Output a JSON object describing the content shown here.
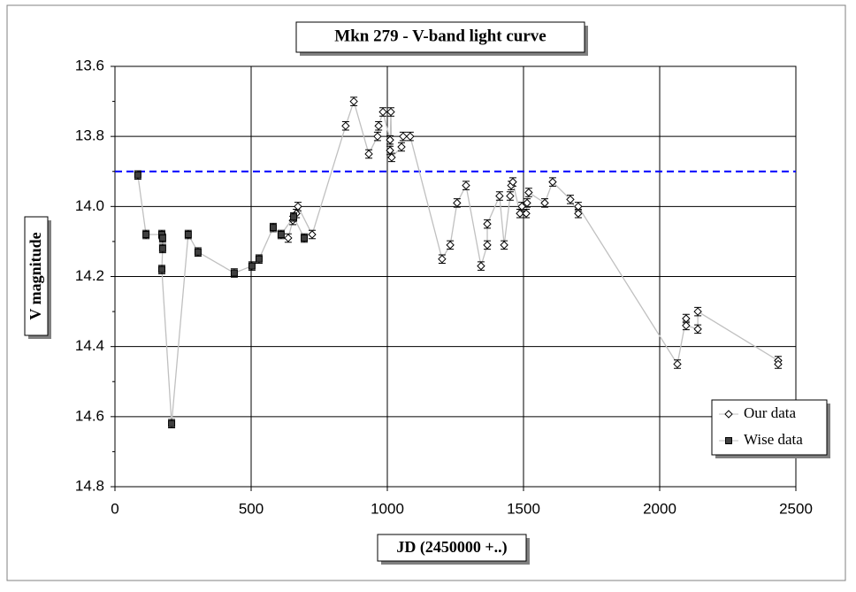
{
  "chart_data": {
    "type": "scatter",
    "title": "Mkn 279 - V-band light curve",
    "xlabel": "JD (2450000 +..)",
    "ylabel": "V magnitude",
    "xlim": [
      0,
      2500
    ],
    "xticks": [
      0,
      500,
      1000,
      1500,
      2000,
      2500
    ],
    "ylim": [
      13.6,
      14.8
    ],
    "y_inverted": true,
    "yticks": [
      13.6,
      13.8,
      {
        "value": 14,
        "label": "14.0"
      },
      14.2,
      14.4,
      14.6,
      14.8
    ],
    "grid": true,
    "legend": "lower right",
    "line_color": "#c0c0c0",
    "hlines": [
      {
        "value": 13.9,
        "color": "#0000ff",
        "style": "dashed"
      }
    ],
    "series": [
      {
        "name": "Our data",
        "color": "#ffffff",
        "marker": "diamond",
        "error": 0.012,
        "x": [
          636,
          653,
          666,
          672,
          724,
          847,
          877,
          932,
          964,
          968,
          984,
          1010,
          1010,
          1013,
          1016,
          1052,
          1058,
          1084,
          1201,
          1231,
          1256,
          1289,
          1344,
          1367,
          1367,
          1412,
          1429,
          1451,
          1455,
          1461,
          1487,
          1494,
          1510,
          1513,
          1519,
          1578,
          1607,
          1672,
          1701,
          1701,
          2065,
          2097,
          2097,
          2140,
          2140,
          2435,
          2435
        ],
        "values": [
          14.09,
          14.04,
          14.02,
          14.0,
          14.08,
          13.77,
          13.7,
          13.85,
          13.8,
          13.77,
          13.73,
          13.81,
          13.84,
          13.73,
          13.86,
          13.83,
          13.8,
          13.8,
          14.15,
          14.11,
          13.99,
          13.94,
          14.17,
          14.11,
          14.05,
          13.97,
          14.11,
          13.97,
          13.94,
          13.93,
          14.02,
          14.0,
          14.02,
          13.99,
          13.96,
          13.99,
          13.93,
          13.98,
          14.02,
          14.0,
          14.45,
          14.32,
          14.34,
          14.35,
          14.3,
          14.44,
          14.45
        ]
      },
      {
        "name": "Wise data",
        "color": "#404040",
        "marker": "square",
        "error": 0.012,
        "x": [
          84,
          114,
          172,
          175,
          175,
          172,
          208,
          269,
          305,
          438,
          503,
          529,
          581,
          610,
          656,
          695
        ],
        "values": [
          13.91,
          14.08,
          14.08,
          14.09,
          14.12,
          14.18,
          14.62,
          14.08,
          14.13,
          14.19,
          14.17,
          14.15,
          14.06,
          14.08,
          14.03,
          14.09
        ]
      }
    ]
  }
}
